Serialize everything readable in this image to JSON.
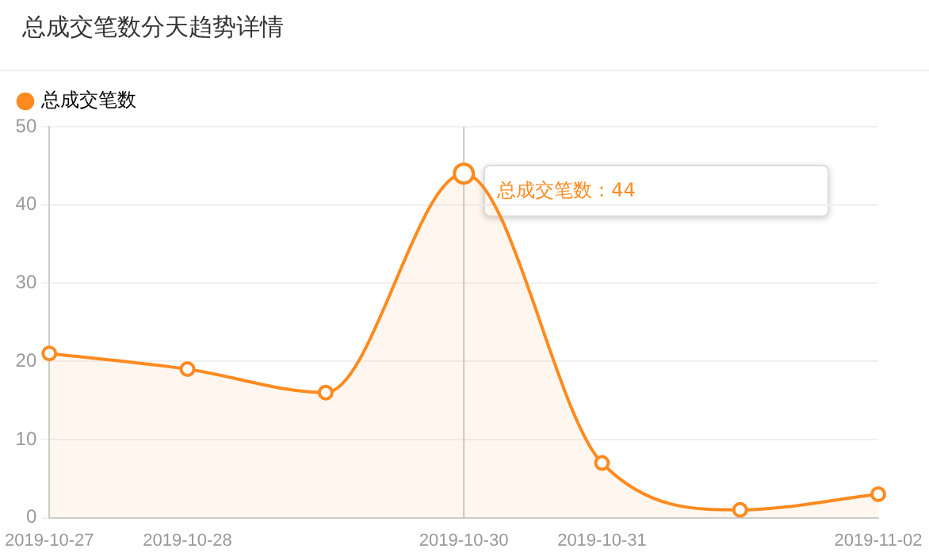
{
  "chart_data": {
    "type": "area",
    "title": "总成交笔数分天趋势详情",
    "categories": [
      "2019-10-27",
      "2019-10-28",
      null,
      "2019-10-30",
      "2019-10-31",
      null,
      "2019-11-02"
    ],
    "series": [
      {
        "name": "总成交笔数",
        "color": "#ff8a1f",
        "values": [
          21,
          19,
          16,
          44,
          7,
          1,
          3
        ]
      }
    ],
    "ylim": [
      0,
      50
    ],
    "yticks": [
      0,
      10,
      20,
      30,
      40,
      50
    ],
    "grid": "y",
    "legend": "top left",
    "marker": "circle",
    "ref_lines": [
      {
        "axis": "x",
        "value": "2019-10-30",
        "color": "#cccccc"
      }
    ],
    "annotations": [
      {
        "text": "总成交笔数：44",
        "x": "2019-10-30",
        "y": 44
      }
    ]
  }
}
